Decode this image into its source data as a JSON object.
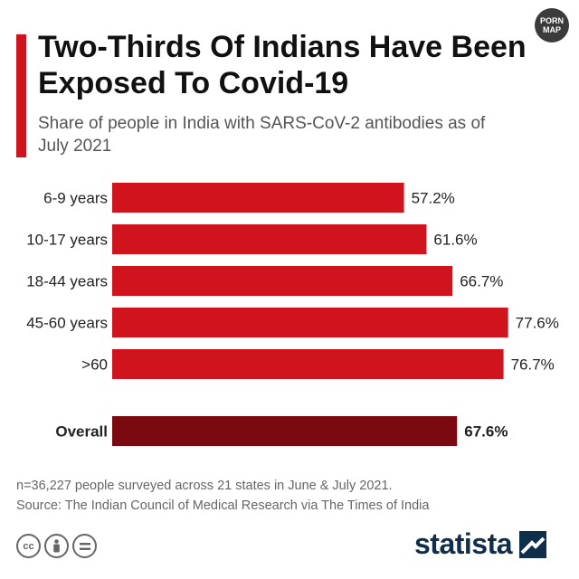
{
  "header": {
    "title": "Two-Thirds Of Indians Have Been Exposed To Covid-19",
    "subtitle": "Share of people in India with SARS-CoV-2 antibodies as of July 2021"
  },
  "badge": {
    "text": "PORN MAP"
  },
  "chart_data": {
    "type": "bar",
    "orientation": "horizontal",
    "categories": [
      "6-9 years",
      "10-17 years",
      "18-44 years",
      "45-60 years",
      ">60",
      "Overall"
    ],
    "values": [
      57.2,
      61.6,
      66.7,
      77.6,
      76.7,
      67.6
    ],
    "value_labels": [
      "57.2%",
      "61.6%",
      "66.7%",
      "77.6%",
      "76.7%",
      "67.6%"
    ],
    "highlight": "Overall",
    "colors": {
      "bars": "#d0141e",
      "highlight": "#7a0a10",
      "accent": "#d0141e"
    },
    "xlim": [
      0,
      80
    ],
    "grid": false,
    "legend": "none"
  },
  "footer": {
    "note": "n=36,227 people surveyed across 21 states in June & July 2021.",
    "source": "Source: The Indian Council of Medical Research via The Times of India",
    "brand": "statista",
    "license_icons": [
      "cc-icon",
      "attribution-icon",
      "no-derivatives-icon"
    ]
  }
}
